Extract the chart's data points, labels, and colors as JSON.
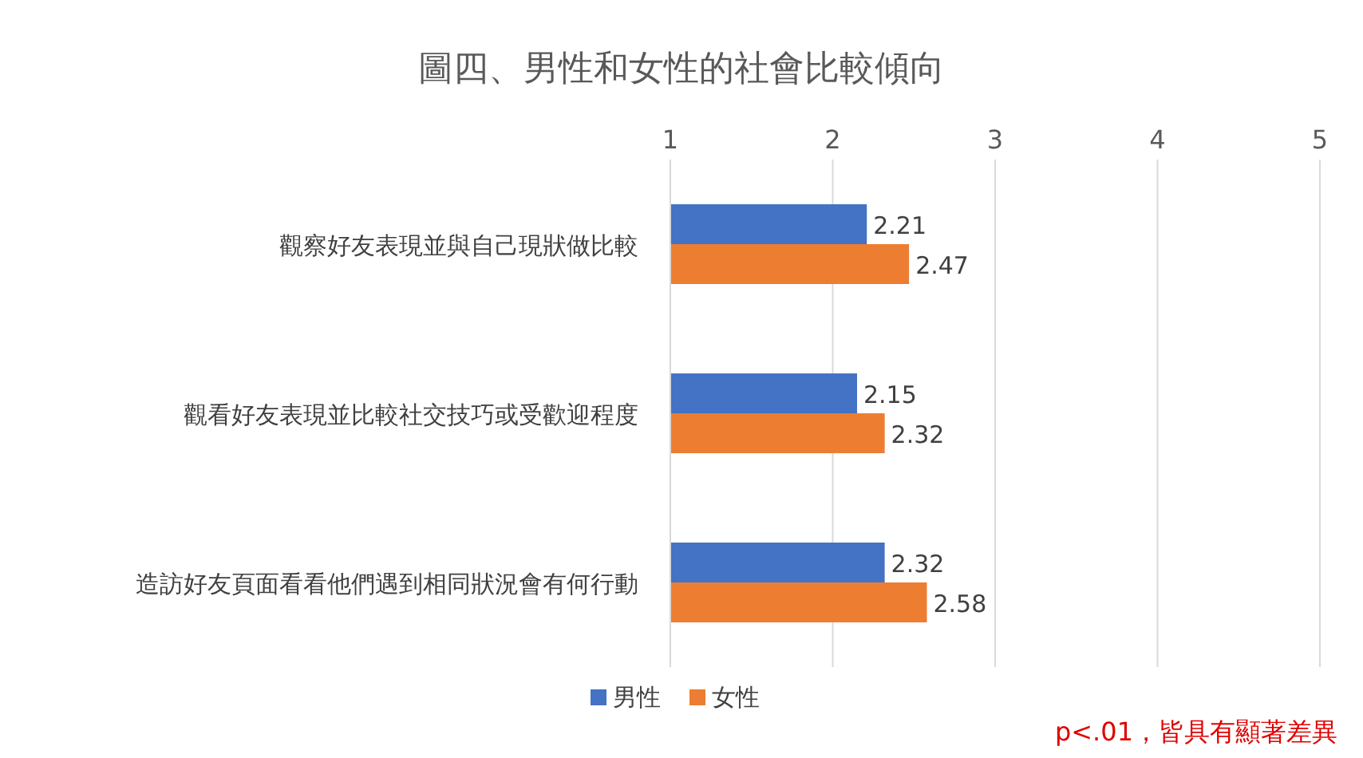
{
  "chart_data": {
    "type": "bar",
    "orientation": "horizontal",
    "title": "圖四、男性和女性的社會比較傾向",
    "categories": [
      "觀察好友表現並與自己現狀做比較",
      "觀看好友表現並比較社交技巧或受歡迎程度",
      "造訪好友頁面看看他們遇到相同狀況會有何行動"
    ],
    "series": [
      {
        "name": "男性",
        "color": "#4472c4",
        "values": [
          2.21,
          2.15,
          2.32
        ]
      },
      {
        "name": "女性",
        "color": "#ed7d31",
        "values": [
          2.47,
          2.32,
          2.58
        ]
      }
    ],
    "xlim": [
      1,
      5
    ],
    "xticks": [
      1,
      2,
      3,
      4,
      5
    ],
    "grid": "x",
    "legend": "bottom",
    "data_labels": true,
    "annotations": [
      "p<.01，皆具有顯著差異"
    ]
  }
}
